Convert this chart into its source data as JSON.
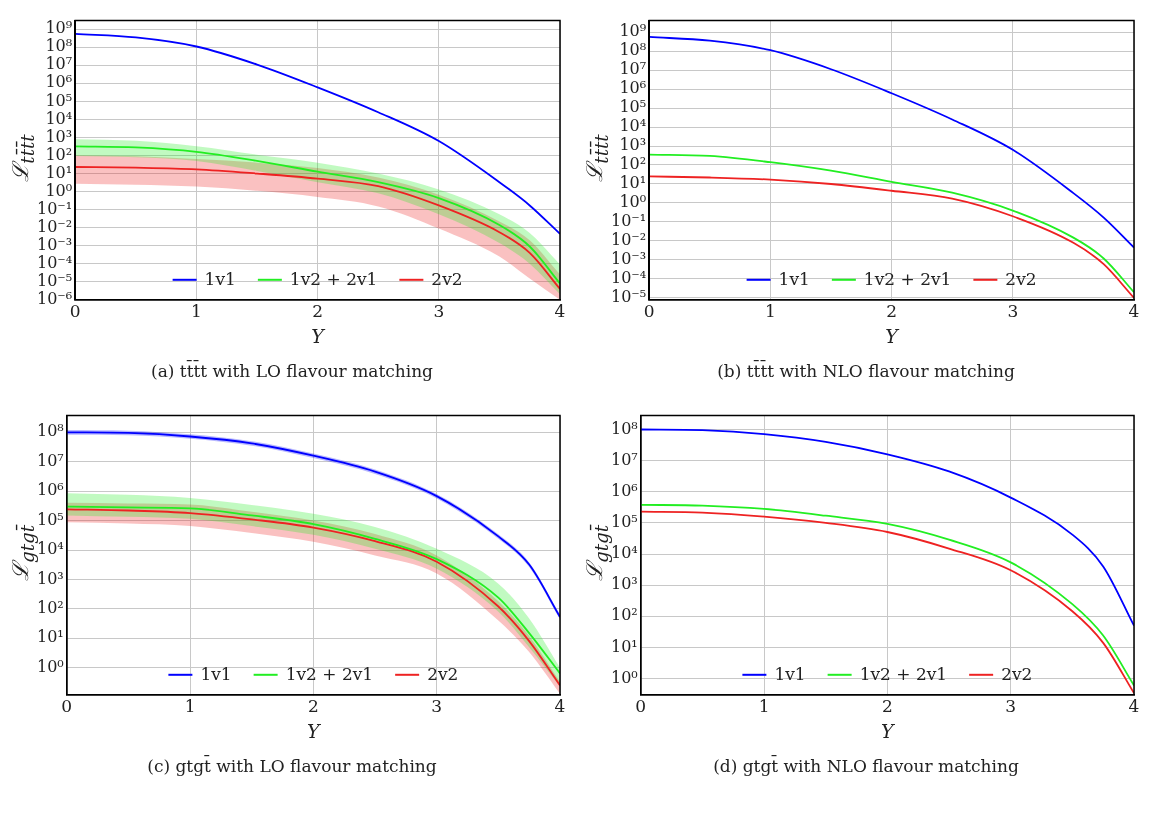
{
  "chart_data": [
    {
      "type": "line",
      "title": "(a) tt̄t̄t with LO flavour matching",
      "xlabel": "Y",
      "ylabel": "ℒ$_{tt̄t̄t}$",
      "log": "y",
      "grid": true,
      "legend": "bottom",
      "xlim": [
        0,
        4
      ],
      "xticks": [
        0,
        1,
        2,
        3,
        4
      ],
      "ylim": [
        1e-06,
        3000000000.0
      ],
      "yticks": [
        {
          "value": 1e-06,
          "label": "10⁻⁶"
        },
        {
          "value": 1e-05,
          "label": "10⁻⁵"
        },
        {
          "value": 0.0001,
          "label": "10⁻⁴"
        },
        {
          "value": 0.001,
          "label": "10⁻³"
        },
        {
          "value": 0.01,
          "label": "10⁻²"
        },
        {
          "value": 0.1,
          "label": "10⁻¹"
        },
        {
          "value": 1,
          "label": "10⁰"
        },
        {
          "value": 10,
          "label": "10¹"
        },
        {
          "value": 100,
          "label": "10²"
        },
        {
          "value": 1000.0,
          "label": "10³"
        },
        {
          "value": 10000.0,
          "label": "10⁴"
        },
        {
          "value": 100000.0,
          "label": "10⁵"
        },
        {
          "value": 1000000.0,
          "label": "10⁶"
        },
        {
          "value": 10000000.0,
          "label": "10⁷"
        },
        {
          "value": 100000000.0,
          "label": "10⁸"
        },
        {
          "value": 1000000000.0,
          "label": "10⁹"
        }
      ],
      "x": [
        0,
        0.5,
        1,
        1.5,
        2,
        2.5,
        3,
        3.5,
        3.75,
        4
      ],
      "series": [
        {
          "name": "1v1",
          "color": "#0000ff",
          "values": [
            550000000.0,
            350000000.0,
            110000000.0,
            11000000.0,
            600000.0,
            25000.0,
            630,
            3.3,
            0.17,
            0.0045
          ]
        },
        {
          "name": "1v2 + 2v1",
          "color": "#22ee22",
          "values": [
            320,
            280,
            160,
            50,
            12.6,
            3.3,
            0.43,
            0.014,
            0.0009,
            8e-06
          ],
          "upper": [
            800,
            650,
            320,
            110,
            40,
            10,
            1.3,
            0.055,
            0.005,
            9e-05
          ],
          "lower": [
            93,
            80,
            50,
            14,
            3.3,
            0.8,
            0.055,
            0.0014,
            0.0001,
            2e-06
          ]
        },
        {
          "name": "2v2",
          "color": "#ee2222",
          "values": [
            23,
            21,
            17,
            10,
            5.2,
            2,
            0.17,
            0.0056,
            0.0004,
            4e-06
          ],
          "upper": [
            100,
            90,
            63,
            40,
            20,
            6,
            0.67,
            0.022,
            0.002,
            2.5e-05
          ],
          "lower": [
            2.7,
            2.4,
            1.9,
            1.1,
            0.5,
            0.15,
            0.009,
            0.00025,
            1.5e-05,
            1e-06
          ]
        }
      ]
    },
    {
      "type": "line",
      "title": "(b) tt̄t̄t with NLO flavour matching",
      "xlabel": "Y",
      "ylabel": "ℒ$_{tt̄t̄t}$",
      "log": "y",
      "grid": true,
      "legend": "bottom",
      "xlim": [
        0,
        4
      ],
      "xticks": [
        0,
        1,
        2,
        3,
        4
      ],
      "ylim": [
        8e-06,
        4000000000.0
      ],
      "yticks": [
        {
          "value": 1e-05,
          "label": "10⁻⁵"
        },
        {
          "value": 0.0001,
          "label": "10⁻⁴"
        },
        {
          "value": 0.001,
          "label": "10⁻³"
        },
        {
          "value": 0.01,
          "label": "10⁻²"
        },
        {
          "value": 0.1,
          "label": "10⁻¹"
        },
        {
          "value": 1,
          "label": "10⁰"
        },
        {
          "value": 10,
          "label": "10¹"
        },
        {
          "value": 100,
          "label": "10²"
        },
        {
          "value": 1000.0,
          "label": "10³"
        },
        {
          "value": 10000.0,
          "label": "10⁴"
        },
        {
          "value": 100000.0,
          "label": "10⁵"
        },
        {
          "value": 1000000.0,
          "label": "10⁶"
        },
        {
          "value": 10000000.0,
          "label": "10⁷"
        },
        {
          "value": 100000000.0,
          "label": "10⁸"
        },
        {
          "value": 1000000000.0,
          "label": "10⁹"
        }
      ],
      "x": [
        0,
        0.5,
        1,
        1.5,
        2,
        2.5,
        3,
        3.5,
        3.75,
        4
      ],
      "series": [
        {
          "name": "1v1",
          "color": "#0000ff",
          "values": [
            550000000.0,
            350000000.0,
            110000000.0,
            11000000.0,
            600000.0,
            25000.0,
            630,
            3.3,
            0.17,
            0.0045
          ]
        },
        {
          "name": "1v2 + 2v1",
          "color": "#22ee22",
          "values": [
            350,
            300,
            140,
            50,
            13,
            3.5,
            0.4,
            0.015,
            0.0012,
            2e-05
          ]
        },
        {
          "name": "2v2",
          "color": "#ee2222",
          "values": [
            25,
            22,
            17,
            10,
            4.4,
            1.7,
            0.2,
            0.008,
            0.0006,
            1e-05
          ]
        }
      ]
    },
    {
      "type": "line",
      "title": "(c) gtgt̄ with LO flavour matching",
      "xlabel": "Y",
      "ylabel": "ℒ$_{gtgt̄}$",
      "log": "y",
      "grid": true,
      "legend": "bottom",
      "xlim": [
        0,
        4
      ],
      "xticks": [
        0,
        1,
        2,
        3,
        4
      ],
      "ylim": [
        0.12,
        370000000.0
      ],
      "yticks": [
        {
          "value": 1,
          "label": "10⁰"
        },
        {
          "value": 10,
          "label": "10¹"
        },
        {
          "value": 100,
          "label": "10²"
        },
        {
          "value": 1000.0,
          "label": "10³"
        },
        {
          "value": 10000.0,
          "label": "10⁴"
        },
        {
          "value": 100000.0,
          "label": "10⁵"
        },
        {
          "value": 1000000.0,
          "label": "10⁶"
        },
        {
          "value": 10000000.0,
          "label": "10⁷"
        },
        {
          "value": 100000000.0,
          "label": "10⁸"
        }
      ],
      "x": [
        0,
        0.5,
        1,
        1.5,
        2,
        2.5,
        3,
        3.5,
        3.75,
        4
      ],
      "series": [
        {
          "name": "1v1",
          "color": "#0000ff",
          "values": [
            100000000.0,
            95000000.0,
            72000000.0,
            42000000.0,
            16000000.0,
            4600000.0,
            680000.0,
            29000.0,
            3200,
            53
          ],
          "upper": [
            120000000.0,
            114000000.0,
            86000000.0,
            50000000.0,
            19000000.0,
            5500000.0,
            800000.0,
            34000.0,
            3800,
            65
          ],
          "lower": [
            83000000.0,
            79000000.0,
            60000000.0,
            35000000.0,
            13300000.0,
            3800000.0,
            560000.0,
            24000.0,
            2650,
            44
          ]
        },
        {
          "name": "1v2 + 2v1",
          "color": "#22ee22",
          "values": [
            300000.0,
            280000.0,
            260000.0,
            150000.0,
            76000.0,
            24000.0,
            4900,
            240,
            15,
            0.64
          ],
          "upper": [
            850000.0,
            750000.0,
            590000.0,
            340000.0,
            170000.0,
            60000.0,
            11000.0,
            720,
            47,
            1
          ],
          "lower": [
            150000.0,
            135000.0,
            115000.0,
            65000.0,
            33000.0,
            11000.0,
            2300,
            80,
            5,
            0.23
          ]
        },
        {
          "name": "2v2",
          "color": "#ee2222",
          "values": [
            240000.0,
            220000.0,
            180000.0,
            110000.0,
            58000.0,
            20000.0,
            4000,
            120,
            8,
            0.25
          ],
          "upper": [
            400000.0,
            380000.0,
            350000.0,
            200000.0,
            100000.0,
            35000.0,
            6500,
            180,
            12,
            0.33
          ],
          "lower": [
            87000.0,
            80000.0,
            66000.0,
            38000.0,
            19000.0,
            6500,
            1600,
            40,
            3.4,
            0.13
          ]
        }
      ]
    },
    {
      "type": "line",
      "title": "(d) gtgt̄ with NLO flavour matching",
      "xlabel": "Y",
      "ylabel": "ℒ$_{gtgt̄}$",
      "log": "y",
      "grid": true,
      "legend": "bottom",
      "xlim": [
        0,
        4
      ],
      "xticks": [
        0,
        1,
        2,
        3,
        4
      ],
      "ylim": [
        0.3,
        280000000.0
      ],
      "yticks": [
        {
          "value": 1,
          "label": "10⁰"
        },
        {
          "value": 10,
          "label": "10¹"
        },
        {
          "value": 100,
          "label": "10²"
        },
        {
          "value": 1000.0,
          "label": "10³"
        },
        {
          "value": 10000.0,
          "label": "10⁴"
        },
        {
          "value": 100000.0,
          "label": "10⁵"
        },
        {
          "value": 1000000.0,
          "label": "10⁶"
        },
        {
          "value": 10000000.0,
          "label": "10⁷"
        },
        {
          "value": 100000000.0,
          "label": "10⁸"
        }
      ],
      "x": [
        0,
        0.5,
        1,
        1.5,
        2,
        2.5,
        3,
        3.5,
        3.75,
        4
      ],
      "series": [
        {
          "name": "1v1",
          "color": "#0000ff",
          "values": [
            100000000.0,
            95000000.0,
            71000000.0,
            40000000.0,
            16000000.0,
            4500000.0,
            650000.0,
            42000.0,
            4000,
            50
          ]
        },
        {
          "name": "1v2 + 2v1",
          "color": "#22ee22",
          "values": [
            380000.0,
            360000.0,
            280000.0,
            170000.0,
            93000.0,
            29000.0,
            5400,
            245,
            24,
            0.6
          ]
        },
        {
          "name": "2v2",
          "color": "#ee2222",
          "values": [
            230000.0,
            215000.0,
            160000.0,
            100000.0,
            51000.0,
            15000.0,
            3000,
            145,
            14,
            0.34
          ]
        }
      ]
    }
  ]
}
